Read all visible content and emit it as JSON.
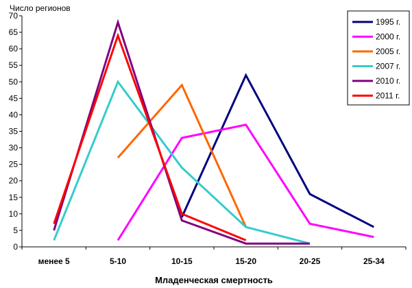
{
  "chart_data": {
    "type": "line",
    "ylabel": "Число регионов",
    "xlabel": "Младенческая смертность",
    "ylim": [
      0,
      70
    ],
    "yticks": [
      0,
      5,
      10,
      15,
      20,
      25,
      30,
      35,
      40,
      45,
      50,
      55,
      60,
      65,
      70
    ],
    "grid": false,
    "legend_position": "top-right",
    "categories": [
      "менее 5",
      "5-10",
      "10-15",
      "15-20",
      "20-25",
      "25-34"
    ],
    "series": [
      {
        "name": "1995 г.",
        "color": "#000080",
        "values": [
          null,
          null,
          9,
          52,
          16,
          6
        ]
      },
      {
        "name": "2000 г.",
        "color": "#FF00FF",
        "values": [
          null,
          2,
          33,
          37,
          7,
          3
        ]
      },
      {
        "name": "2005 г.",
        "color": "#FF6600",
        "values": [
          null,
          27,
          49,
          6,
          null,
          null
        ]
      },
      {
        "name": "2007 г.",
        "color": "#33CCCC",
        "values": [
          2,
          50,
          24,
          6,
          1,
          null
        ]
      },
      {
        "name": "2010 г.",
        "color": "#800080",
        "values": [
          5,
          68,
          8,
          1,
          1,
          null
        ]
      },
      {
        "name": "2011 г.",
        "color": "#FF0000",
        "values": [
          7,
          64,
          10,
          2,
          null,
          null
        ]
      }
    ]
  }
}
